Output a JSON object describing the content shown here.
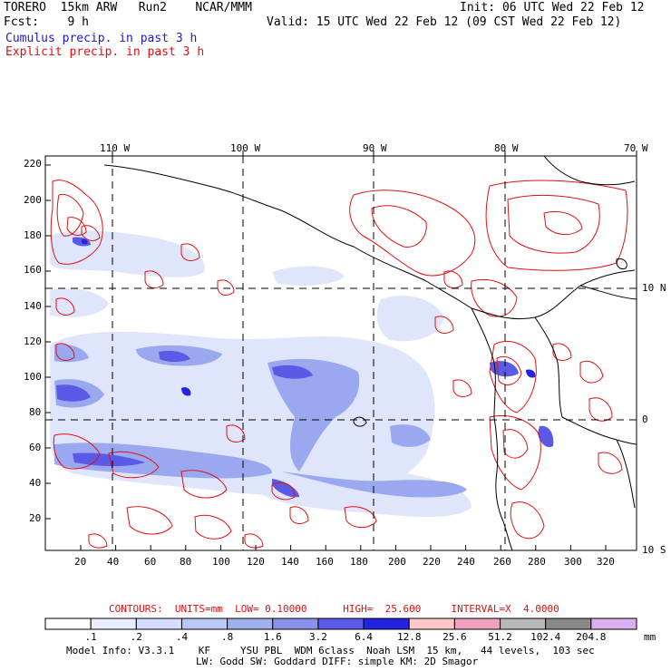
{
  "header": {
    "title_left": "TORERO  15km ARW   Run2    NCAR/MMM",
    "init": "Init: 06 UTC Wed 22 Feb 12",
    "fcst": "Fcst:    9 h",
    "valid": "Valid: 15 UTC Wed 22 Feb 12 (09 CST Wed 22 Feb 12)",
    "legend_cumulus": "Cumulus precip. in past 3 h",
    "legend_explicit": "Explicit precip. in past 3 h"
  },
  "map": {
    "top_lon_labels": [
      "110 W",
      "100 W",
      "90 W",
      "80 W",
      "70 W"
    ],
    "right_lat_labels": [
      "10 N",
      "0",
      "10 S"
    ],
    "y_ticks": [
      "220",
      "200",
      "180",
      "160",
      "140",
      "120",
      "100",
      "80",
      "60",
      "40",
      "20"
    ],
    "x_ticks": [
      "20",
      "40",
      "60",
      "80",
      "100",
      "120",
      "140",
      "160",
      "180",
      "200",
      "220",
      "240",
      "260",
      "280",
      "300",
      "320"
    ]
  },
  "contour_info": {
    "text": "CONTOURS:  UNITS=mm  LOW= 0.10000      HIGH=  25.600     INTERVAL=X  4.0000"
  },
  "colorbar": {
    "labels": [
      ".1",
      ".2",
      ".4",
      ".8",
      "1.6",
      "3.2",
      "6.4",
      "12.8",
      "25.6",
      "51.2",
      "102.4",
      "204.8"
    ],
    "units": "mm",
    "colors": [
      "#ffffff",
      "#e8eeff",
      "#d4ddff",
      "#b9c8f8",
      "#9fb0f0",
      "#8890ea",
      "#5a5ae6",
      "#2424e0",
      "#ffc8c8",
      "#f0a0c0",
      "#b8b8b8",
      "#888888",
      "#dcb0f0"
    ]
  },
  "footer": {
    "line1": "Model Info: V3.3.1    KF     YSU PBL  WDM 6class  Noah LSM  15 km,   44 levels,  103 sec",
    "line2": "LW: Godd SW: Goddard DIFF: simple KM: 2D Smagor"
  }
}
